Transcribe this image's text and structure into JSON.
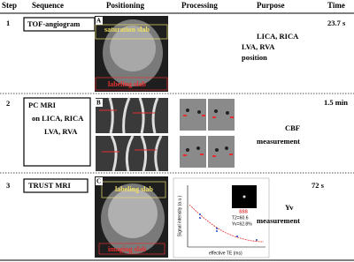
{
  "header": {
    "columns": [
      "Step",
      "Sequence",
      "Positioning",
      "Processing",
      "Purpose",
      "Time"
    ]
  },
  "rows": [
    {
      "step": "1",
      "sequence": [
        "TOF-angiogram"
      ],
      "panel": "A",
      "image_labels": [
        "saturation slab",
        "labeling slab"
      ],
      "purpose": [
        "LICA, RICA",
        "LVA, RVA",
        "position"
      ],
      "time": "23.7 s"
    },
    {
      "step": "2",
      "sequence": [
        "PC MRI",
        "on LICA, RICA",
        "LVA, RVA"
      ],
      "panel": "B",
      "purpose": [
        "CBF",
        "measurement"
      ],
      "time": "1.5 min"
    },
    {
      "step": "3",
      "sequence": [
        "TRUST MRI"
      ],
      "panel": "C",
      "image_labels": [
        "labeling slab",
        "imaging slab"
      ],
      "plot": {
        "y_label": "Signal intensity (a.u.)",
        "x_label": "effective TE (ms)",
        "annotations": [
          "SSS",
          "T2=60.6",
          "Yv=62.8%"
        ]
      },
      "purpose": [
        "Yv",
        "measurement"
      ],
      "time": "72 s"
    }
  ]
}
